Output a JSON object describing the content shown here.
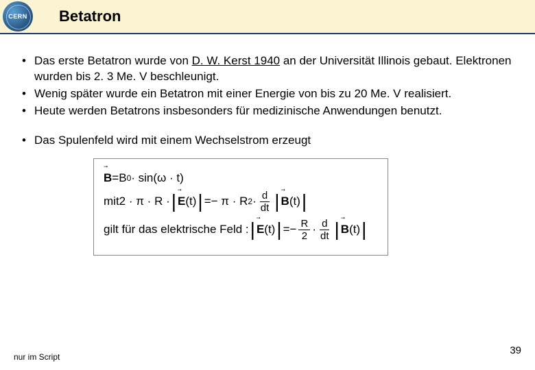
{
  "header": {
    "logo_text": "CERN",
    "title": "Betatron",
    "background_color": "#fbf4d2",
    "divider_color": "#1a3a7a"
  },
  "bullets": {
    "b1_pre": "Das erste Betatron wurde von ",
    "b1_underlined": "D. W. Kerst 1940",
    "b1_post": " an der Universität Illinois gebaut. Elektronen wurden bis 2. 3 Me. V beschleunigt.",
    "b2": "Wenig später wurde ein Betatron mit einer Energie von bis zu 20 Me. V realisiert.",
    "b3": "Heute werden Betatrons insbesonders für medizinische Anwendungen benutzt.",
    "b4": "Das Spulenfeld wird mit einem Wechselstrom erzeugt"
  },
  "formula": {
    "line1": {
      "lhs": "B",
      "eq": " = ",
      "rhs_base": "B",
      "rhs_sub": "0",
      "rhs_tail": " · sin(ω · t)"
    },
    "line2": {
      "prefix": "mit  ",
      "coef": "2 · π · R · ",
      "E": "E",
      "t_arg": "(t)",
      "eq": " = ",
      "rhs_coef": "− π · R",
      "sup2": "2",
      "dot": " · ",
      "frac_num": "d",
      "frac_den": "dt",
      "B": "B",
      "t_arg2": "(t)"
    },
    "line3": {
      "prefix": "gilt für das elektrische Feld : ",
      "E": "E",
      "t_arg": "(t)",
      "eq": " = ",
      "minus": "− ",
      "frac_num": "R",
      "frac_den": "2",
      "dot": " · ",
      "frac2_num": "d",
      "frac2_den": "dt",
      "B": "B",
      "t_arg2": "(t)"
    }
  },
  "footer": {
    "note": "nur im Script",
    "page": "39"
  }
}
